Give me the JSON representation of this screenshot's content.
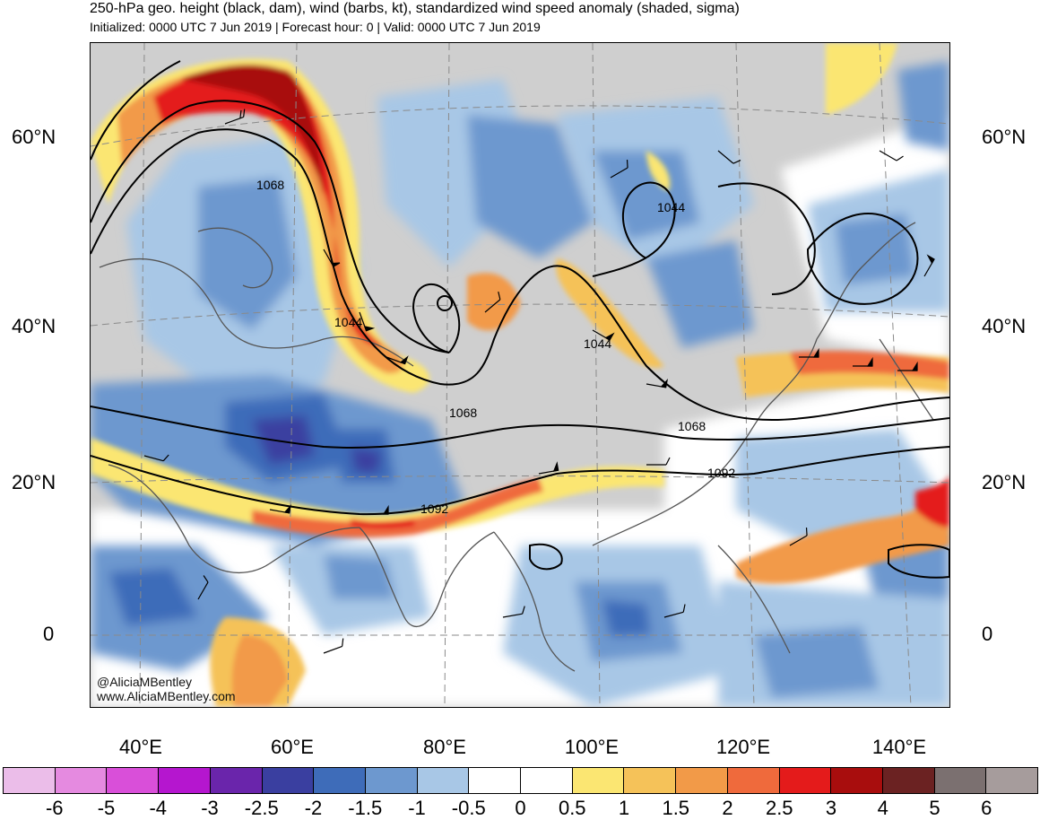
{
  "header": {
    "title": "250-hPa geo. height (black, dam), wind (barbs, kt), standardized wind speed anomaly (shaded, sigma)",
    "subtitle": "Initialized: 0000 UTC 7 Jun 2019 | Forecast hour: 0 | Valid: 0000 UTC 7 Jun 2019"
  },
  "map": {
    "lat_labels": [
      "60°N",
      "40°N",
      "20°N",
      "0"
    ],
    "lon_labels": [
      "40°E",
      "60°E",
      "80°E",
      "100°E",
      "120°E",
      "140°E"
    ],
    "contour_labels": [
      "1068",
      "1044",
      "1044",
      "1044",
      "1068",
      "1068",
      "1092",
      "1092"
    ],
    "credit_handle": "@AliciaMBentley",
    "credit_site": "www.AliciaMBentley.com"
  },
  "colorbar": {
    "labels": [
      "-6",
      "-5",
      "-4",
      "-3",
      "-2.5",
      "-2",
      "-1.5",
      "-1",
      "-0.5",
      "0",
      "0.5",
      "1",
      "1.5",
      "2",
      "2.5",
      "3",
      "4",
      "5",
      "6"
    ],
    "colors": [
      "#ebbde9",
      "#e58ae0",
      "#d94fd9",
      "#b516cf",
      "#6a25ab",
      "#3a3fa0",
      "#3e6cb9",
      "#6d98cf",
      "#a8c7e6",
      "#ffffff",
      "#ffffff",
      "#fbe672",
      "#f5c259",
      "#f29a48",
      "#ef6a3c",
      "#e41b1b",
      "#a80d0d",
      "#6b2222",
      "#7b7070",
      "#a69c9c"
    ]
  }
}
